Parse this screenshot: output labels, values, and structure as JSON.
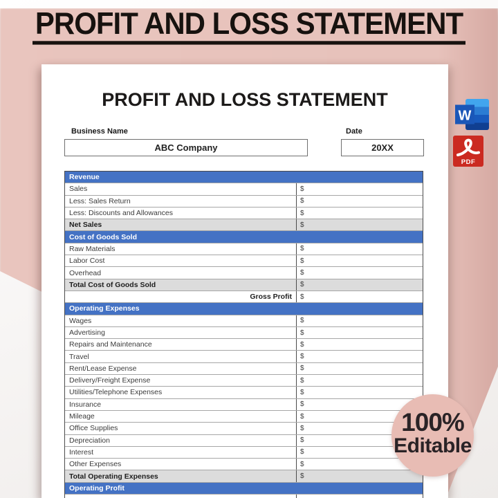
{
  "banner": {
    "title": "PROFIT AND LOSS STATEMENT"
  },
  "document": {
    "title": "PROFIT AND LOSS STATEMENT",
    "business_name": {
      "label": "Business Name",
      "value": "ABC Company"
    },
    "date": {
      "label": "Date",
      "value": "20XX"
    }
  },
  "table": {
    "currency_symbol": "$",
    "rows": [
      {
        "type": "section",
        "label": "Revenue",
        "value": ""
      },
      {
        "type": "item",
        "label": "Sales",
        "value": "$"
      },
      {
        "type": "item",
        "label": "Less: Sales Return",
        "value": "$"
      },
      {
        "type": "item",
        "label": "Less: Discounts and Allowances",
        "value": "$"
      },
      {
        "type": "total",
        "label": "Net Sales",
        "value": "$"
      },
      {
        "type": "section",
        "label": "Cost of Goods Sold",
        "value": ""
      },
      {
        "type": "item",
        "label": "Raw Materials",
        "value": "$"
      },
      {
        "type": "item",
        "label": "Labor Cost",
        "value": "$"
      },
      {
        "type": "item",
        "label": "Overhead",
        "value": "$"
      },
      {
        "type": "total",
        "label": "Total Cost of Goods Sold",
        "value": "$"
      },
      {
        "type": "computed",
        "label": "Gross Profit",
        "value": "$"
      },
      {
        "type": "section",
        "label": "Operating Expenses",
        "value": ""
      },
      {
        "type": "item",
        "label": "Wages",
        "value": "$"
      },
      {
        "type": "item",
        "label": "Advertising",
        "value": "$"
      },
      {
        "type": "item",
        "label": "Repairs and Maintenance",
        "value": "$"
      },
      {
        "type": "item",
        "label": "Travel",
        "value": "$"
      },
      {
        "type": "item",
        "label": "Rent/Lease Expense",
        "value": "$"
      },
      {
        "type": "item",
        "label": "Delivery/Freight Expense",
        "value": "$"
      },
      {
        "type": "item",
        "label": "Utilities/Telephone Expenses",
        "value": "$"
      },
      {
        "type": "item",
        "label": "Insurance",
        "value": "$"
      },
      {
        "type": "item",
        "label": "Mileage",
        "value": "$"
      },
      {
        "type": "item",
        "label": "Office Supplies",
        "value": "$"
      },
      {
        "type": "item",
        "label": "Depreciation",
        "value": "$"
      },
      {
        "type": "item",
        "label": "Interest",
        "value": "$"
      },
      {
        "type": "item",
        "label": "Other Expenses",
        "value": "$"
      },
      {
        "type": "total",
        "label": "Total Operating Expenses",
        "value": "$"
      },
      {
        "type": "section",
        "label": "Operating Profit",
        "value": ""
      },
      {
        "type": "item",
        "label": "",
        "value": ""
      }
    ]
  },
  "badge": {
    "line1": "100%",
    "line2": "Editable"
  },
  "file_icons": {
    "word_letter": "W",
    "pdf_label": "PDF"
  },
  "colors": {
    "background_pink": "#e7c2bb",
    "section_header_blue": "#4472c4",
    "total_row_gray": "#dcdcdc",
    "table_border_dark": "#4a4a4a",
    "word_icon_blue": "#185abd",
    "pdf_icon_red": "#cb2a21",
    "badge_pink": "#e8bcb4",
    "title_black": "#17120f"
  }
}
